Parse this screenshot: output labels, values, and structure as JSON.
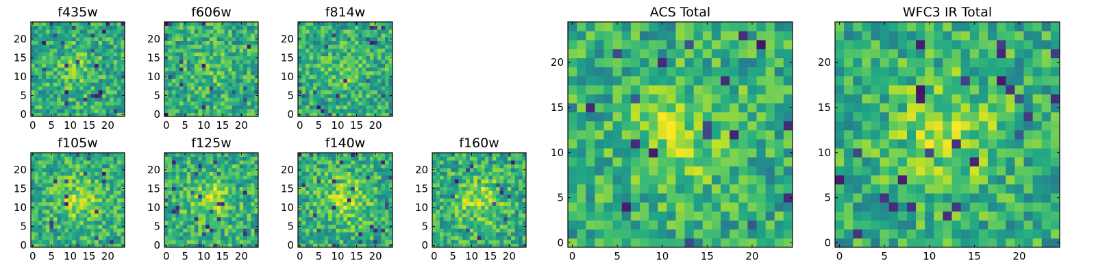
{
  "chart_data": [
    {
      "type": "heatmap",
      "title": "f435w",
      "xticks": [
        0,
        5,
        10,
        15,
        20
      ],
      "yticks": [
        0,
        5,
        10,
        15,
        20
      ],
      "xlim": [
        0,
        24
      ],
      "ylim": [
        0,
        24
      ],
      "grid_size": 25,
      "colormap": "viridis"
    },
    {
      "type": "heatmap",
      "title": "f606w",
      "xticks": [
        0,
        5,
        10,
        15,
        20
      ],
      "yticks": [
        0,
        5,
        10,
        15,
        20
      ],
      "xlim": [
        0,
        24
      ],
      "ylim": [
        0,
        24
      ],
      "grid_size": 25,
      "colormap": "viridis"
    },
    {
      "type": "heatmap",
      "title": "f814w",
      "xticks": [
        0,
        5,
        10,
        15,
        20
      ],
      "yticks": [
        0,
        5,
        10,
        15,
        20
      ],
      "xlim": [
        0,
        24
      ],
      "ylim": [
        0,
        24
      ],
      "grid_size": 25,
      "colormap": "viridis"
    },
    {
      "type": "heatmap",
      "title": "f105w",
      "xticks": [
        0,
        5,
        10,
        15,
        20
      ],
      "yticks": [
        0,
        5,
        10,
        15,
        20
      ],
      "xlim": [
        0,
        24
      ],
      "ylim": [
        0,
        24
      ],
      "grid_size": 25,
      "colormap": "viridis"
    },
    {
      "type": "heatmap",
      "title": "f125w",
      "xticks": [
        0,
        5,
        10,
        15,
        20
      ],
      "yticks": [
        0,
        5,
        10,
        15,
        20
      ],
      "xlim": [
        0,
        24
      ],
      "ylim": [
        0,
        24
      ],
      "grid_size": 25,
      "colormap": "viridis"
    },
    {
      "type": "heatmap",
      "title": "f140w",
      "xticks": [
        0,
        5,
        10,
        15,
        20
      ],
      "yticks": [
        0,
        5,
        10,
        15,
        20
      ],
      "xlim": [
        0,
        24
      ],
      "ylim": [
        0,
        24
      ],
      "grid_size": 25,
      "colormap": "viridis"
    },
    {
      "type": "heatmap",
      "title": "f160w",
      "xticks": [
        0,
        5,
        10,
        15,
        20
      ],
      "yticks": [
        0,
        5,
        10,
        15,
        20
      ],
      "xlim": [
        0,
        24
      ],
      "ylim": [
        0,
        24
      ],
      "grid_size": 25,
      "colormap": "viridis"
    },
    {
      "type": "heatmap",
      "title": "ACS Total",
      "xticks": [
        0,
        5,
        10,
        15,
        20
      ],
      "yticks": [
        0,
        5,
        10,
        15,
        20
      ],
      "xlim": [
        0,
        24
      ],
      "ylim": [
        0,
        24
      ],
      "grid_size": 25,
      "colormap": "viridis"
    },
    {
      "type": "heatmap",
      "title": "WFC3 IR Total",
      "xticks": [
        0,
        5,
        10,
        15,
        20
      ],
      "yticks": [
        0,
        5,
        10,
        15,
        20
      ],
      "xlim": [
        0,
        24
      ],
      "ylim": [
        0,
        24
      ],
      "grid_size": 25,
      "colormap": "viridis"
    }
  ]
}
